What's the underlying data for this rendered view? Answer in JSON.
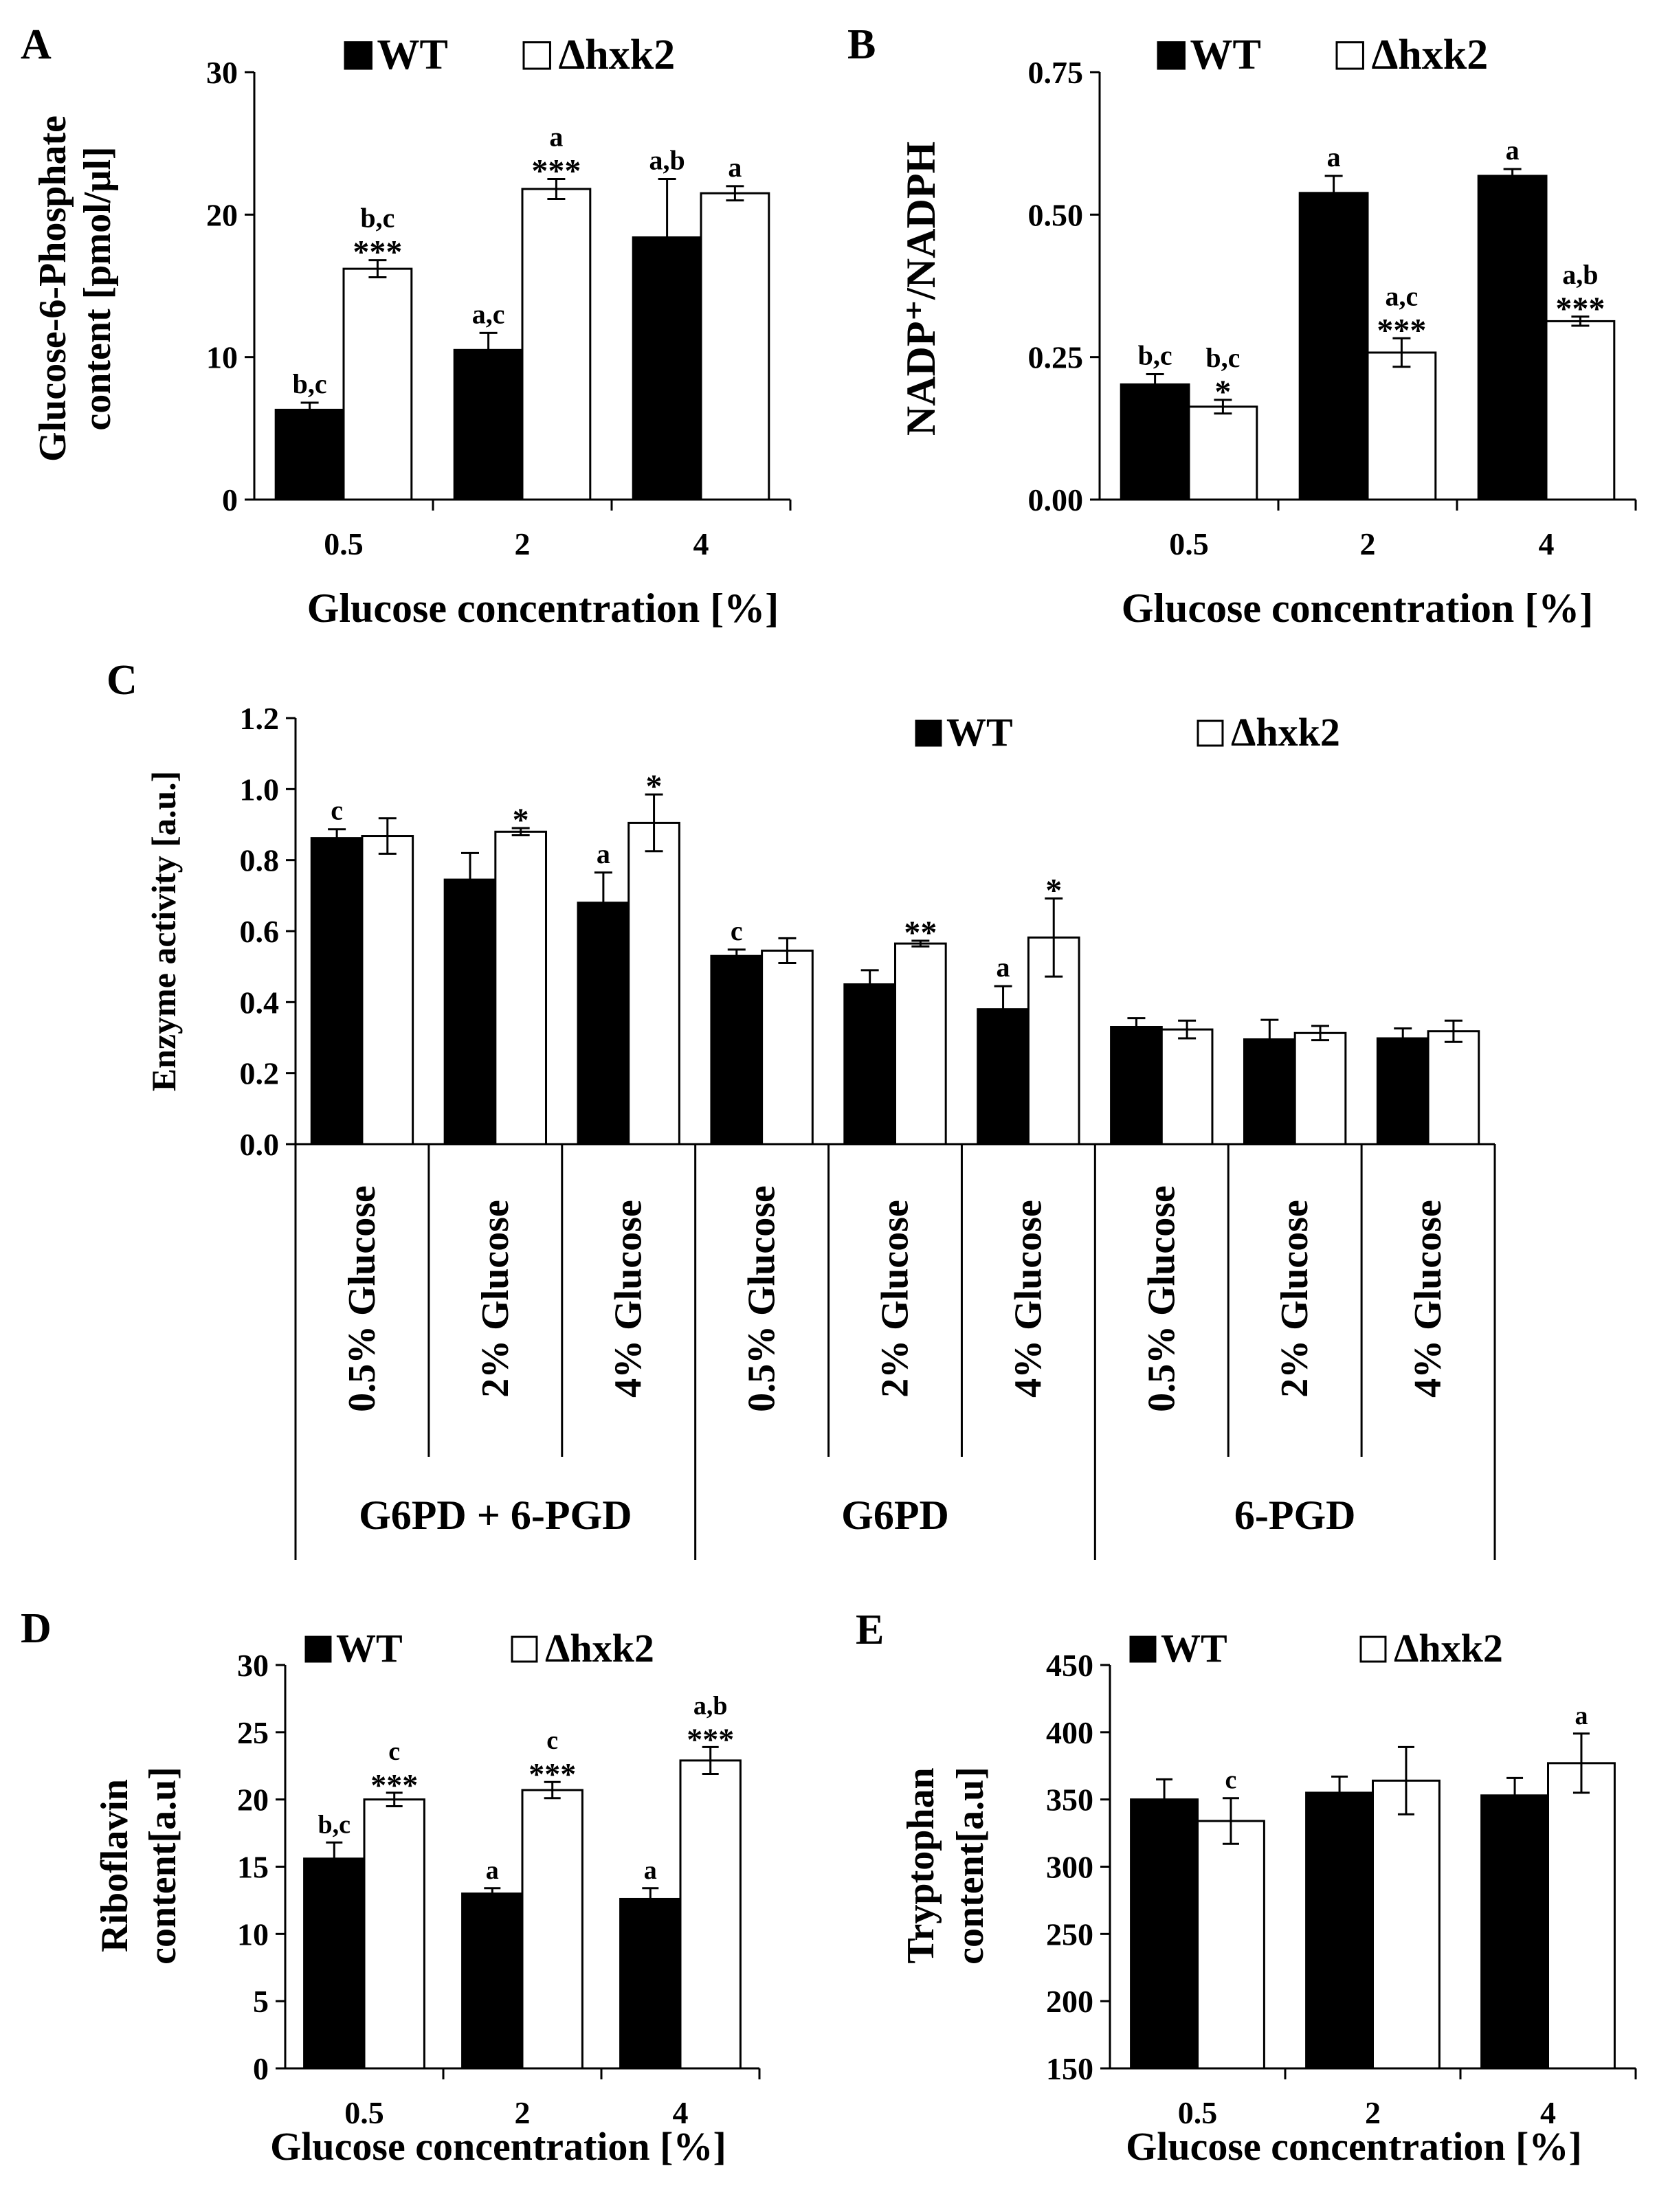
{
  "figure": {
    "legend": {
      "wt": "WT",
      "mut": "Δhxk2"
    },
    "colors": {
      "wt": "#000000",
      "mut": "#ffffff",
      "axis": "#000000"
    }
  },
  "chart_data": [
    {
      "id": "A",
      "type": "bar",
      "panel_label": "A",
      "ylabel_lines": [
        "Glucose-6-Phosphate",
        "content  [pmol/µl]"
      ],
      "xlabel": "Glucose concentration [%]",
      "categories": [
        "0.5",
        "2",
        "4"
      ],
      "ylim": [
        0,
        30
      ],
      "yticks": [
        "0",
        "10",
        "20",
        "30"
      ],
      "series": [
        {
          "name": "WT",
          "values": [
            6.3,
            10.5,
            18.4
          ],
          "errors": [
            0.5,
            1.2,
            4.1
          ],
          "annotations": [
            [
              "b,c"
            ],
            [
              "a,c"
            ],
            [
              "a,b"
            ]
          ]
        },
        {
          "name": "Δhxk2",
          "values": [
            16.2,
            21.8,
            21.5
          ],
          "errors": [
            0.6,
            0.7,
            0.5
          ],
          "annotations": [
            [
              "b,c",
              "***"
            ],
            [
              "a",
              "***"
            ],
            [
              "a"
            ]
          ]
        }
      ]
    },
    {
      "id": "B",
      "type": "bar",
      "panel_label": "B",
      "ylabel_lines": [
        "NADP⁺/NADPH"
      ],
      "xlabel": "Glucose concentration [%]",
      "categories": [
        "0.5",
        "2",
        "4"
      ],
      "ylim": [
        0,
        0.75
      ],
      "yticks": [
        "0.00",
        "0.25",
        "0.50",
        "0.75"
      ],
      "series": [
        {
          "name": "WT",
          "values": [
            0.202,
            0.538,
            0.568
          ],
          "errors": [
            0.018,
            0.03,
            0.012
          ],
          "annotations": [
            [
              "b,c"
            ],
            [
              "a"
            ],
            [
              "a"
            ]
          ]
        },
        {
          "name": "Δhxk2",
          "values": [
            0.163,
            0.258,
            0.313
          ],
          "errors": [
            0.012,
            0.025,
            0.008
          ],
          "annotations": [
            [
              "b,c",
              "*"
            ],
            [
              "a,c",
              "***"
            ],
            [
              "a,b",
              "***"
            ]
          ]
        }
      ]
    },
    {
      "id": "C",
      "type": "bar",
      "panel_label": "C",
      "ylabel_lines": [
        "Enzyme activity [a.u.]"
      ],
      "xlabel": "",
      "categories": [
        "0.5% Glucose",
        "2% Glucose",
        "4% Glucose",
        "0.5% Glucose",
        "2% Glucose",
        "4% Glucose",
        "0.5% Glucose",
        "2% Glucose",
        "4% Glucose"
      ],
      "groups": [
        {
          "label": "G6PD + 6-PGD",
          "span": 3
        },
        {
          "label": "G6PD",
          "span": 3
        },
        {
          "label": "6-PGD",
          "span": 3
        }
      ],
      "ylim": [
        0,
        1.2
      ],
      "yticks": [
        "0.0",
        "0.2",
        "0.4",
        "0.6",
        "0.8",
        "1.0",
        "1.2"
      ],
      "series": [
        {
          "name": "WT",
          "values": [
            0.862,
            0.745,
            0.68,
            0.53,
            0.45,
            0.38,
            0.33,
            0.295,
            0.298
          ],
          "errors": [
            0.025,
            0.075,
            0.085,
            0.018,
            0.04,
            0.065,
            0.025,
            0.055,
            0.028
          ],
          "annotations": [
            [
              "c"
            ],
            [],
            [
              "a"
            ],
            [
              "c"
            ],
            [],
            [
              "a"
            ],
            [],
            [],
            []
          ]
        },
        {
          "name": "Δhxk2",
          "values": [
            0.868,
            0.88,
            0.905,
            0.545,
            0.565,
            0.582,
            0.323,
            0.313,
            0.318
          ],
          "errors": [
            0.05,
            0.01,
            0.08,
            0.035,
            0.008,
            0.11,
            0.025,
            0.02,
            0.03
          ],
          "annotations": [
            [],
            [
              "*"
            ],
            [
              "*"
            ],
            [],
            [
              "**"
            ],
            [
              "*"
            ],
            [],
            [],
            []
          ]
        }
      ]
    },
    {
      "id": "D",
      "type": "bar",
      "panel_label": "D",
      "ylabel_lines": [
        "Riboflavin",
        "content[a.u]"
      ],
      "xlabel": "Glucose concentration [%]",
      "categories": [
        "0.5",
        "2",
        "4"
      ],
      "ylim": [
        0,
        30
      ],
      "yticks": [
        "0",
        "5",
        "10",
        "15",
        "20",
        "25",
        "30"
      ],
      "series": [
        {
          "name": "WT",
          "values": [
            15.6,
            13.0,
            12.6
          ],
          "errors": [
            1.2,
            0.4,
            0.8
          ],
          "annotations": [
            [
              "b,c"
            ],
            [
              "a"
            ],
            [
              "a"
            ]
          ]
        },
        {
          "name": "Δhxk2",
          "values": [
            20.0,
            20.7,
            22.9
          ],
          "errors": [
            0.5,
            0.6,
            1.0
          ],
          "annotations": [
            [
              "c",
              "***"
            ],
            [
              "c",
              "***"
            ],
            [
              "a,b",
              "***"
            ]
          ]
        }
      ]
    },
    {
      "id": "E",
      "type": "bar",
      "panel_label": "E",
      "ylabel_lines": [
        "Tryptophan",
        "content[a.u]"
      ],
      "xlabel": "Glucose concentration [%]",
      "categories": [
        "0.5",
        "2",
        "4"
      ],
      "ylim": [
        150,
        450
      ],
      "yticks": [
        "150",
        "200",
        "250",
        "300",
        "350",
        "400",
        "450"
      ],
      "series": [
        {
          "name": "WT",
          "values": [
            350,
            355,
            353
          ],
          "errors": [
            15,
            12,
            13
          ],
          "annotations": [
            [],
            [],
            []
          ]
        },
        {
          "name": "Δhxk2",
          "values": [
            334,
            364,
            377
          ],
          "errors": [
            17,
            25,
            22
          ],
          "annotations": [
            [
              "c"
            ],
            [],
            [
              "a"
            ]
          ]
        }
      ]
    }
  ]
}
